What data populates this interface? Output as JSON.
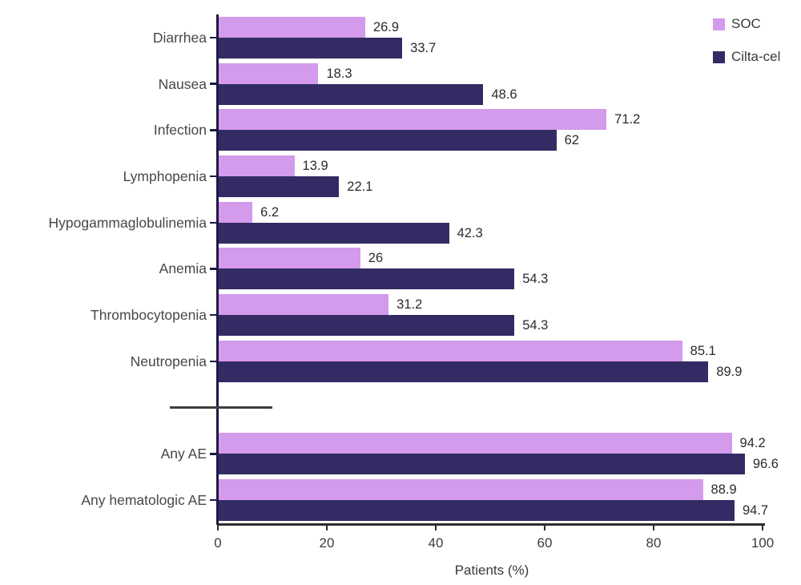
{
  "chart_data": {
    "type": "bar",
    "orientation": "horizontal",
    "title": "",
    "xlabel": "Patients (%)",
    "ylabel": "",
    "xlim": [
      0,
      100
    ],
    "x_ticks": [
      0,
      20,
      40,
      60,
      80,
      100
    ],
    "grid": false,
    "legend_position": "top-right",
    "axis_break_after": "Neutropenia",
    "categories": [
      "Diarrhea",
      "Nausea",
      "Infection",
      "Lymphopenia",
      "Hypogammaglobulinemia",
      "Anemia",
      "Thrombocytopenia",
      "Neutropenia",
      "Any AE",
      "Any hematologic AE"
    ],
    "series": [
      {
        "name": "SOC",
        "color": "#d49aec",
        "values": [
          26.9,
          18.3,
          71.2,
          13.9,
          6.2,
          26,
          31.2,
          85.1,
          94.2,
          88.9
        ]
      },
      {
        "name": "Cilta-cel",
        "color": "#332c64",
        "values": [
          33.7,
          48.6,
          62,
          22.1,
          42.3,
          54.3,
          54.3,
          89.9,
          96.6,
          94.7
        ]
      }
    ],
    "colors": {
      "x_axis": "#2e2e2e",
      "y_axis": "#1d1945",
      "break_line": "#3f3f3f",
      "label_text": "#474747",
      "value_text": "#2b2b2b"
    }
  }
}
